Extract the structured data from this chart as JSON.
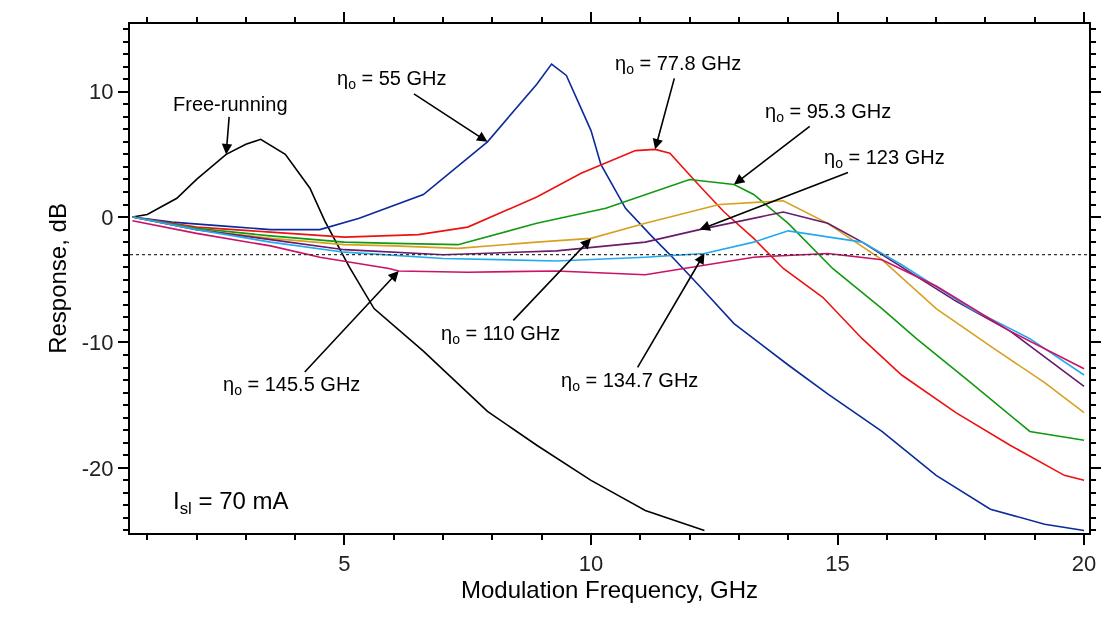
{
  "chart_data": {
    "type": "line",
    "xlabel": "Modulation Frequency, GHz",
    "ylabel": "Response, dB",
    "xlim": [
      0.65,
      20.1
    ],
    "ylim": [
      -25.2,
      15.4
    ],
    "xticks": [
      5,
      10,
      15,
      20
    ],
    "yticks": [
      -20,
      -10,
      0,
      10
    ],
    "grid": false,
    "marker": "none",
    "line_style": "solid",
    "series": [
      {
        "color": "#000000",
        "x": [
          0.7,
          1.0,
          1.6,
          2.0,
          2.6,
          3.0,
          3.3,
          3.8,
          4.3,
          4.6,
          5.1,
          5.6,
          6.6,
          7.9,
          8.9,
          10.0,
          11.1,
          12.3
        ],
        "values": [
          0,
          0.2,
          1.5,
          3,
          5,
          5.8,
          6.2,
          5,
          2.3,
          -0.3,
          -4,
          -7.3,
          -10.7,
          -15.5,
          -18.2,
          -21,
          -23.4,
          -25
        ]
      },
      {
        "color": "#0a2a9a",
        "x": [
          0.7,
          1.5,
          2.5,
          3.5,
          4.5,
          5.3,
          6.6,
          7.9,
          8.9,
          9.2,
          9.5,
          10.0,
          10.2,
          10.7,
          11.2,
          11.7,
          12.2,
          12.9,
          13.3,
          14.0,
          14.8,
          15.9,
          17.0,
          18.1,
          19.2,
          20.0
        ],
        "values": [
          0,
          -0.4,
          -0.7,
          -1,
          -1,
          -0.1,
          1.8,
          6,
          10.6,
          12.2,
          11.3,
          6.9,
          4.2,
          0.7,
          -1.4,
          -3.4,
          -5.5,
          -8.5,
          -9.7,
          -11.8,
          -14.1,
          -17.1,
          -20.6,
          -23.3,
          -24.5,
          -25
        ]
      },
      {
        "color": "#ee1111",
        "x": [
          0.7,
          2,
          3.5,
          5,
          6.5,
          7.5,
          8.9,
          9.8,
          10.9,
          11.3,
          11.6,
          12.2,
          12.7,
          13.3,
          13.9,
          14.7,
          15.5,
          16.3,
          17.4,
          18.5,
          19.6,
          20
        ],
        "values": [
          0,
          -0.8,
          -1.2,
          -1.6,
          -1.4,
          -0.8,
          1.6,
          3.5,
          5.3,
          5.4,
          5.1,
          2.5,
          0.4,
          -1.7,
          -4.1,
          -6.4,
          -9.7,
          -12.6,
          -15.6,
          -18.2,
          -20.6,
          -21
        ]
      },
      {
        "color": "#119911",
        "x": [
          0.7,
          2,
          3.5,
          5,
          6,
          7.3,
          8.9,
          10.3,
          12,
          12.9,
          13.3,
          14,
          14.9,
          15.9,
          16.6,
          17.7,
          18.9,
          20
        ],
        "values": [
          0,
          -0.9,
          -1.5,
          -2,
          -2.1,
          -2.2,
          -0.5,
          0.7,
          3,
          2.6,
          1.8,
          -0.5,
          -4.1,
          -7.3,
          -9.7,
          -13.2,
          -17.1,
          -17.8
        ]
      },
      {
        "color": "#d8a020",
        "x": [
          0.7,
          2,
          3.5,
          5,
          6,
          7.3,
          8.9,
          10.0,
          11.1,
          12.6,
          13.9,
          14.8,
          15.9,
          17,
          18.1,
          19.2,
          20
        ],
        "values": [
          0,
          -1,
          -1.7,
          -2.2,
          -2.3,
          -2.5,
          -2,
          -1.7,
          -0.5,
          1,
          1.3,
          -0.5,
          -3.4,
          -7.3,
          -10.3,
          -13.2,
          -15.6
        ]
      },
      {
        "color": "#6a1a6a",
        "x": [
          0.7,
          2,
          3.5,
          5,
          7,
          9.3,
          11.1,
          12.2,
          13.9,
          14.8,
          15.5,
          17.4,
          18.5,
          20
        ],
        "values": [
          0,
          -1,
          -1.8,
          -2.6,
          -3,
          -2.7,
          -2,
          -1.0,
          0.4,
          -0.5,
          -2,
          -6.7,
          -9.1,
          -13.5
        ]
      },
      {
        "color": "#22aaee",
        "x": [
          0.7,
          2,
          3.5,
          5,
          7,
          9.3,
          11.1,
          12.3,
          13.3,
          14,
          15.5,
          16.3,
          17.7,
          18.9,
          20
        ],
        "values": [
          0,
          -1,
          -2,
          -2.8,
          -3.3,
          -3.5,
          -3.2,
          -2.9,
          -2,
          -1.1,
          -2,
          -3.8,
          -7.3,
          -9.7,
          -12.6
        ]
      },
      {
        "color": "#cc1166",
        "x": [
          0.7,
          2,
          3.5,
          4.5,
          5.9,
          6.1,
          7.5,
          9.3,
          11.1,
          13.3,
          14.8,
          15.9,
          17,
          18.5,
          20
        ],
        "values": [
          -0.3,
          -1.3,
          -2.3,
          -3.2,
          -4.1,
          -4.3,
          -4.4,
          -4.3,
          -4.6,
          -3.2,
          -2.9,
          -3.4,
          -5.5,
          -9.1,
          -12.1
        ]
      }
    ],
    "ref_lines": [
      {
        "axis": "y",
        "value": -3,
        "color": "#333333",
        "line_style": "dotted"
      }
    ],
    "annotations": [
      {
        "text": "Free-running",
        "x": 2.6,
        "y": 5
      },
      {
        "text": "η$_{o}$ = 55 GHz",
        "x": 7.9,
        "y": 6
      },
      {
        "text": "η$_{o}$ = 77.8 GHz",
        "x": 11.3,
        "y": 5.4
      },
      {
        "text": "η$_{o}$ = 95.3 GHz",
        "x": 12.9,
        "y": 2.6
      },
      {
        "text": "η$_{o}$ = 123 GHz",
        "x": 12.2,
        "y": -1.0
      },
      {
        "text": "η$_{o}$ = 110 GHz",
        "x": 10.0,
        "y": -1.7
      },
      {
        "text": "η$_{o}$ = 134.7 GHz",
        "x": 12.3,
        "y": -2.9
      },
      {
        "text": "η$_{o}$ = 145.5 GHz",
        "x": 6.1,
        "y": -4.3
      },
      "I$_{sl}$ = 70 mA"
    ]
  }
}
